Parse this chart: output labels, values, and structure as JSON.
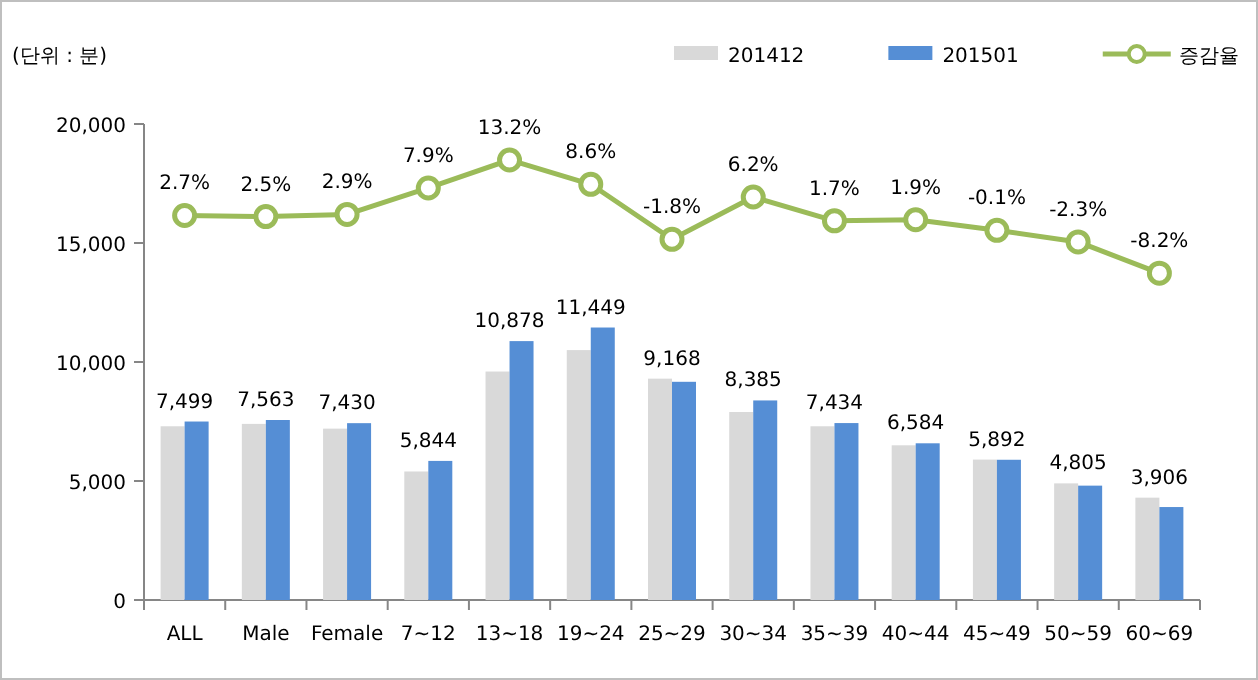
{
  "chart_data": {
    "type": "bar",
    "ylabel": "(단위 : 분)",
    "categories": [
      "ALL",
      "Male",
      "Female",
      "7~12",
      "13~18",
      "19~24",
      "25~29",
      "30~34",
      "35~39",
      "40~44",
      "45~49",
      "50~59",
      "60~69"
    ],
    "series": [
      {
        "name": "201412",
        "color": "#d9d9d9",
        "values": [
          7300,
          7400,
          7200,
          5400,
          9600,
          10500,
          9300,
          7900,
          7300,
          6500,
          5900,
          4900,
          4300
        ]
      },
      {
        "name": "201501",
        "color": "#558ed5",
        "values": [
          7499,
          7563,
          7430,
          5844,
          10878,
          11449,
          9168,
          8385,
          7434,
          6584,
          5892,
          4805,
          3906
        ],
        "value_labels": [
          "7,499",
          "7,563",
          "7,430",
          "5,844",
          "10,878",
          "11,449",
          "9,168",
          "8,385",
          "7,434",
          "6,584",
          "5,892",
          "4,805",
          "3,906"
        ]
      },
      {
        "name": "증감율",
        "type": "line",
        "axis": "y2",
        "color": "#9bbb59",
        "marker": "circle",
        "values": [
          2.7,
          2.5,
          2.9,
          7.9,
          13.2,
          8.6,
          -1.8,
          6.2,
          1.7,
          1.9,
          -0.1,
          -2.3,
          -8.2
        ],
        "value_labels": [
          "2.7%",
          "2.5%",
          "2.9%",
          "7.9%",
          "13.2%",
          "8.6%",
          "-1.8%",
          "6.2%",
          "1.7%",
          "1.9%",
          "-0.1%",
          "-2.3%",
          "-8.2%"
        ]
      }
    ],
    "ylim": [
      0,
      20000
    ],
    "yticks": [
      {
        "value": 0,
        "label": "0"
      },
      {
        "value": 5000,
        "label": "5,000"
      },
      {
        "value": 10000,
        "label": "10,000"
      },
      {
        "value": 15000,
        "label": "15,000"
      },
      {
        "value": 20000,
        "label": "20,000"
      }
    ],
    "y2lim": [
      -70,
      20
    ],
    "legend": "top right"
  }
}
